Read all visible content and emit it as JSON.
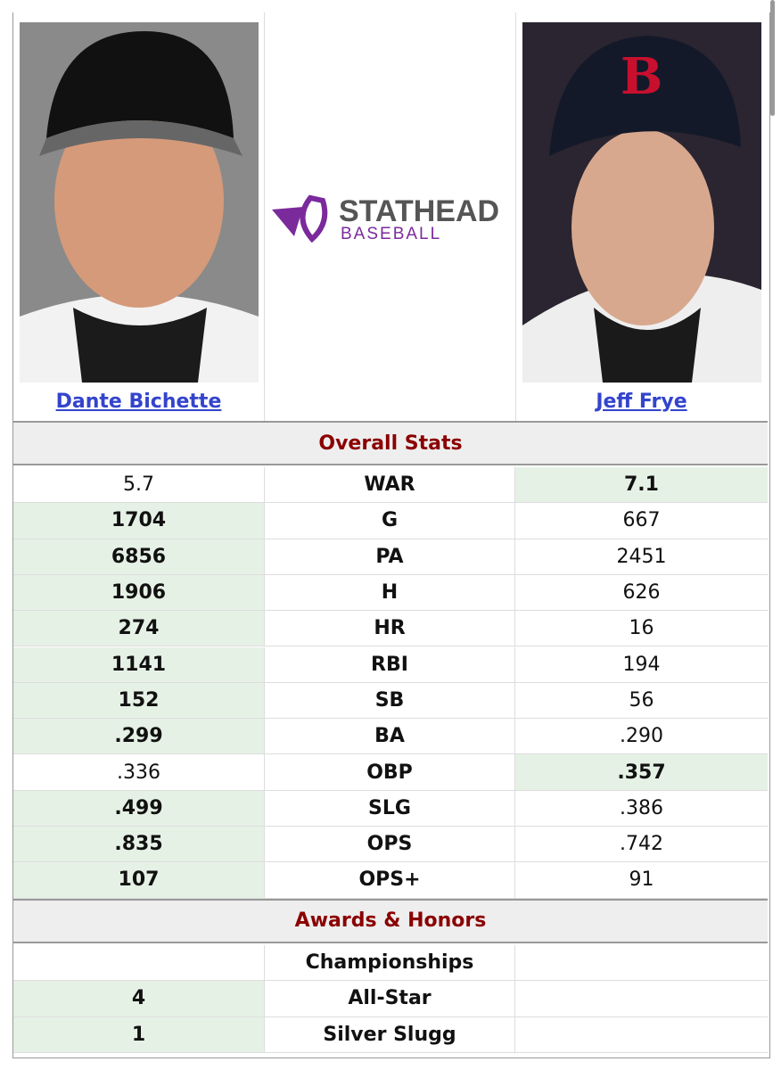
{
  "players": [
    {
      "name": "Dante Bichette"
    },
    {
      "name": "Jeff Frye"
    }
  ],
  "logo": {
    "title": "STATHEAD",
    "subtitle": "BASEBALL"
  },
  "sections": [
    {
      "title": "Overall Stats",
      "rows": [
        {
          "left": "5.7",
          "stat": "WAR",
          "right": "7.1",
          "leader": "right"
        },
        {
          "left": "1704",
          "stat": "G",
          "right": "667",
          "leader": "left"
        },
        {
          "left": "6856",
          "stat": "PA",
          "right": "2451",
          "leader": "left"
        },
        {
          "left": "1906",
          "stat": "H",
          "right": "626",
          "leader": "left"
        },
        {
          "left": "274",
          "stat": "HR",
          "right": "16",
          "leader": "left"
        },
        {
          "left": "1141",
          "stat": "RBI",
          "right": "194",
          "leader": "left"
        },
        {
          "left": "152",
          "stat": "SB",
          "right": "56",
          "leader": "left"
        },
        {
          "left": ".299",
          "stat": "BA",
          "right": ".290",
          "leader": "left"
        },
        {
          "left": ".336",
          "stat": "OBP",
          "right": ".357",
          "leader": "right"
        },
        {
          "left": ".499",
          "stat": "SLG",
          "right": ".386",
          "leader": "left"
        },
        {
          "left": ".835",
          "stat": "OPS",
          "right": ".742",
          "leader": "left"
        },
        {
          "left": "107",
          "stat": "OPS+",
          "right": "91",
          "leader": "left"
        }
      ]
    },
    {
      "title": "Awards & Honors",
      "rows": [
        {
          "stat": "Championships"
        },
        {
          "left": "4",
          "stat": "All-Star",
          "leader": "left"
        },
        {
          "left": "1",
          "stat": "Silver Slugg",
          "leader": "left"
        }
      ]
    }
  ]
}
